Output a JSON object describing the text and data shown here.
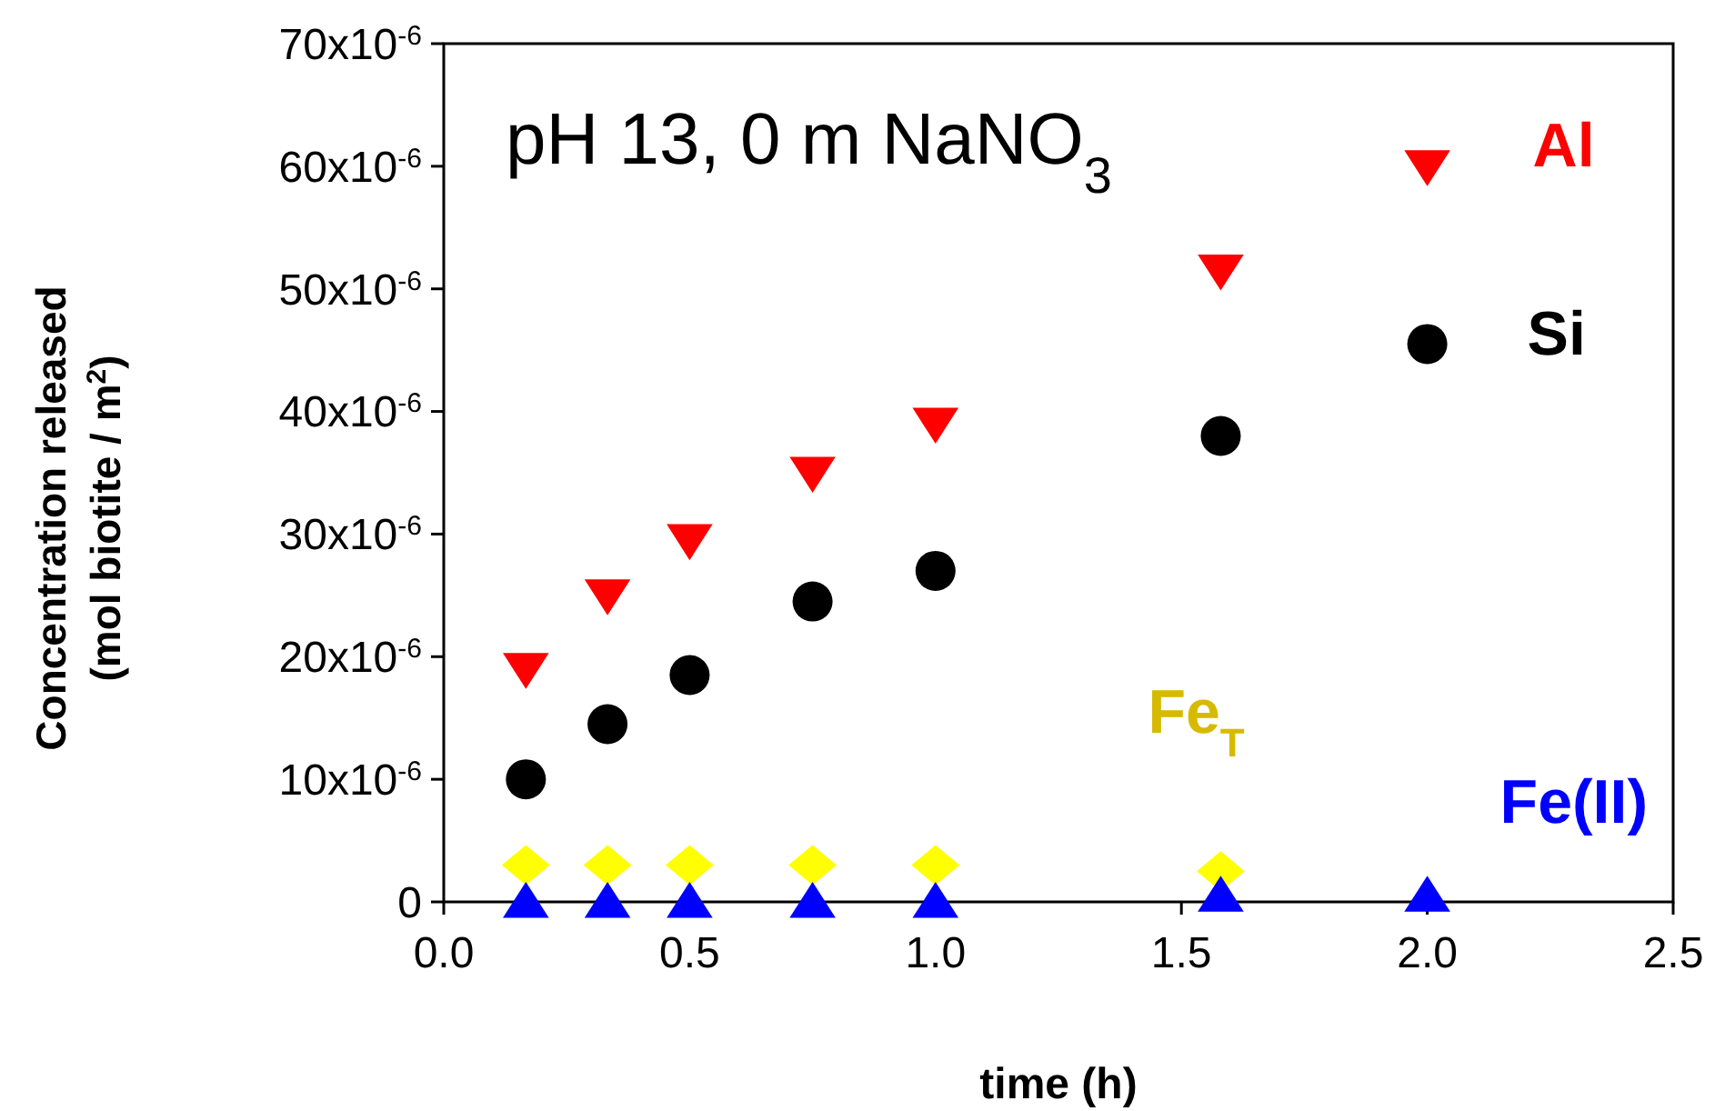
{
  "chart_data": {
    "type": "scatter",
    "xlabel": "time (h)",
    "ylabel": "Concentration released (mol biotite / m$^{2}$)",
    "annotations": [
      "pH 13, 0 m NaNO$_{3}$"
    ],
    "xlim": [
      0,
      2.5
    ],
    "xticks": [
      {
        "value": 0,
        "label": "0.0"
      },
      {
        "value": 0.5,
        "label": "0.5"
      },
      {
        "value": 1,
        "label": "1.0"
      },
      {
        "value": 1.5,
        "label": "1.5"
      },
      {
        "value": 2,
        "label": "2.0"
      },
      {
        "value": 2.5,
        "label": "2.5"
      }
    ],
    "ylim": [
      0,
      7e-05
    ],
    "yticks": [
      {
        "value": 0,
        "label": "0"
      },
      {
        "value": 1e-05,
        "label": "10x10$^{-6}$"
      },
      {
        "value": 2e-05,
        "label": "20x10$^{-6}$"
      },
      {
        "value": 3e-05,
        "label": "30x10$^{-6}$"
      },
      {
        "value": 4e-05,
        "label": "40x10$^{-6}$"
      },
      {
        "value": 5e-05,
        "label": "50x10$^{-6}$"
      },
      {
        "value": 6e-05,
        "label": "60x10$^{-6}$"
      },
      {
        "value": 7e-05,
        "label": "70x10$^{-6}$"
      }
    ],
    "grid": false,
    "series": [
      {
        "name": "Al",
        "color": "#ff0000",
        "marker": "triangle-down",
        "x": [
          0.167,
          0.333,
          0.5,
          0.75,
          1.0,
          1.58,
          2.0
        ],
        "values": [
          1.9e-05,
          2.5e-05,
          2.95e-05,
          3.5e-05,
          3.9e-05,
          5.15e-05,
          6e-05
        ]
      },
      {
        "name": "Si",
        "color": "#000000",
        "marker": "circle",
        "x": [
          0.167,
          0.333,
          0.5,
          0.75,
          1.0,
          1.58,
          2.0
        ],
        "values": [
          1e-05,
          1.45e-05,
          1.85e-05,
          2.45e-05,
          2.7e-05,
          3.8e-05,
          4.55e-05
        ]
      },
      {
        "name": "Fe$_{T}$",
        "color": "#ffff00",
        "marker": "diamond",
        "x": [
          0.167,
          0.333,
          0.5,
          0.75,
          1.0,
          1.58
        ],
        "values": [
          3e-06,
          3e-06,
          3e-06,
          3e-06,
          3e-06,
          2.5e-06
        ]
      },
      {
        "name": "Fe(II)",
        "color": "#0000ff",
        "marker": "triangle",
        "x": [
          0.167,
          0.333,
          0.5,
          0.75,
          1.0,
          1.58,
          2.0
        ],
        "values": [
          0,
          0,
          0,
          0,
          0,
          5e-07,
          5e-07
        ]
      }
    ]
  }
}
